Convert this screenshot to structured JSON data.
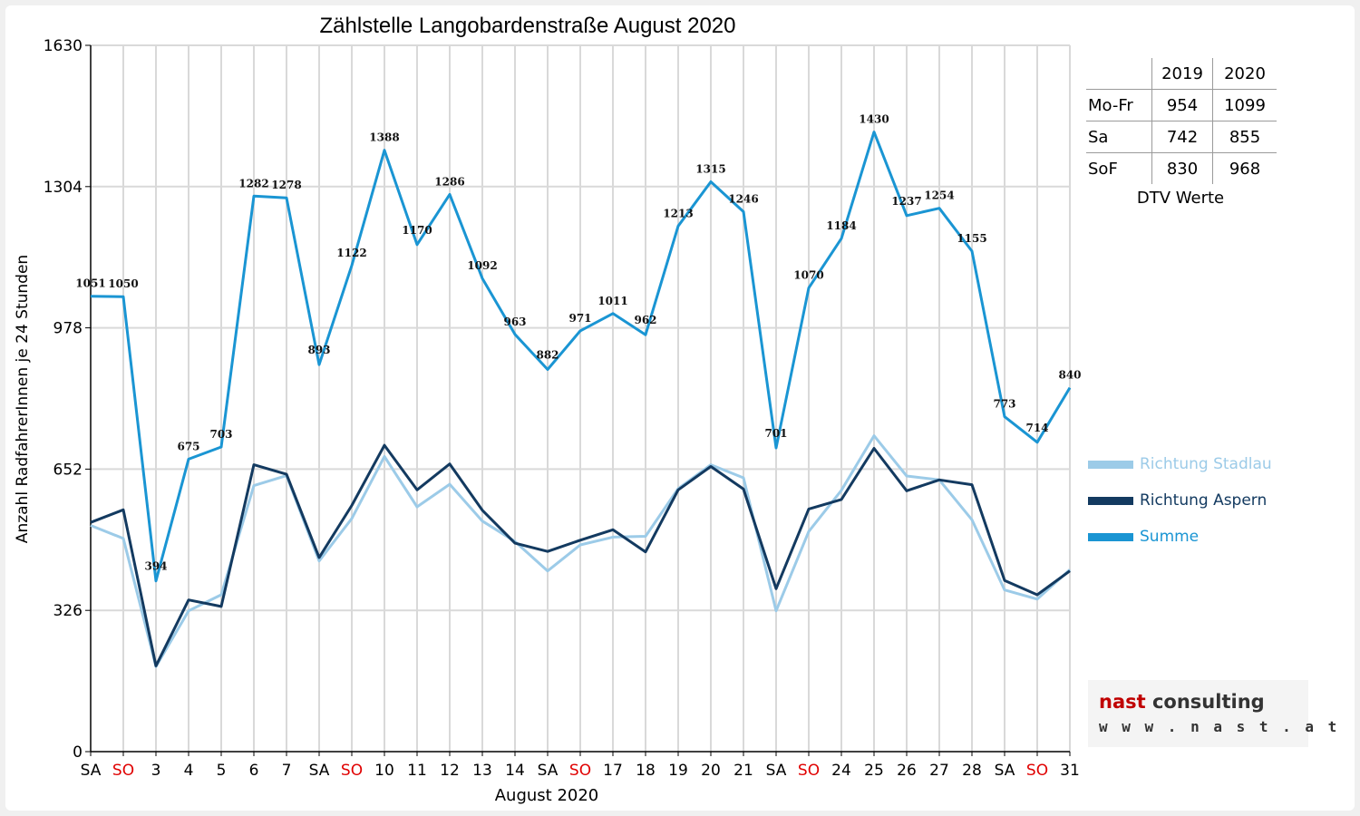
{
  "chart_data": {
    "type": "line",
    "title": "Zählstelle Langobardenstraße August 2020",
    "xlabel": "August 2020",
    "ylabel": "Anzahl RadfahrerInnen je 24 Stunden",
    "ylim": [
      0,
      1630
    ],
    "yticks": [
      0,
      326,
      652,
      978,
      1304,
      1630
    ],
    "grid": true,
    "legend_position": "right",
    "categories": [
      "SA",
      "SO",
      "3",
      "4",
      "5",
      "6",
      "7",
      "SA",
      "SO",
      "10",
      "11",
      "12",
      "13",
      "14",
      "SA",
      "SO",
      "17",
      "18",
      "19",
      "20",
      "21",
      "SA",
      "SO",
      "24",
      "25",
      "26",
      "27",
      "28",
      "SA",
      "SO",
      "31"
    ],
    "category_colors": [
      "#000000",
      "#e00000",
      "#000000",
      "#000000",
      "#000000",
      "#000000",
      "#000000",
      "#000000",
      "#e00000",
      "#000000",
      "#000000",
      "#000000",
      "#000000",
      "#000000",
      "#000000",
      "#e00000",
      "#000000",
      "#000000",
      "#000000",
      "#000000",
      "#000000",
      "#000000",
      "#e00000",
      "#000000",
      "#000000",
      "#000000",
      "#000000",
      "#000000",
      "#000000",
      "#e00000",
      "#000000"
    ],
    "series": [
      {
        "name": "Richtung Stadlau",
        "color": "#9ccbe8",
        "values": [
          522,
          492,
          196,
          325,
          362,
          614,
          637,
          440,
          538,
          681,
          565,
          617,
          532,
          485,
          417,
          477,
          495,
          497,
          607,
          662,
          632,
          325,
          508,
          603,
          729,
          636,
          627,
          535,
          373,
          352,
          420
        ]
      },
      {
        "name": "Richtung Aspern",
        "color": "#133a60",
        "values": [
          529,
          558,
          198,
          350,
          335,
          662,
          640,
          448,
          568,
          707,
          604,
          664,
          557,
          481,
          462,
          488,
          512,
          461,
          604,
          658,
          606,
          376,
          560,
          582,
          700,
          602,
          627,
          616,
          395,
          362,
          417
        ]
      },
      {
        "name": "Summe",
        "color": "#1a95d3",
        "values": [
          1051,
          1050,
          394,
          675,
          703,
          1282,
          1278,
          893,
          1122,
          1388,
          1170,
          1286,
          1092,
          963,
          882,
          971,
          1011,
          962,
          1213,
          1315,
          1246,
          701,
          1070,
          1184,
          1430,
          1237,
          1254,
          1155,
          773,
          714,
          840
        ],
        "data_labels": [
          "1051",
          "1050",
          "394",
          "675",
          "703",
          "1282",
          "1278",
          "893",
          "1122",
          "1388",
          "1170",
          "1286",
          "1092",
          "963",
          "882",
          "971",
          "1011",
          "962",
          "1213",
          "1315",
          "1246",
          "701",
          "1070",
          "1184",
          "1430",
          "1237",
          "1254",
          "1155",
          "773",
          "714",
          "840"
        ]
      }
    ]
  },
  "dtv": {
    "headers": [
      "2019",
      "2020"
    ],
    "rows": [
      {
        "label": "Mo-Fr",
        "v2019": "954",
        "v2020": "1099"
      },
      {
        "label": "Sa",
        "v2019": "742",
        "v2020": "855"
      },
      {
        "label": "SoF",
        "v2019": "830",
        "v2020": "968"
      }
    ],
    "caption": "DTV Werte"
  },
  "logo": {
    "brand": "nast",
    "word": "consulting",
    "url": "w w w . n a s t . a t"
  }
}
